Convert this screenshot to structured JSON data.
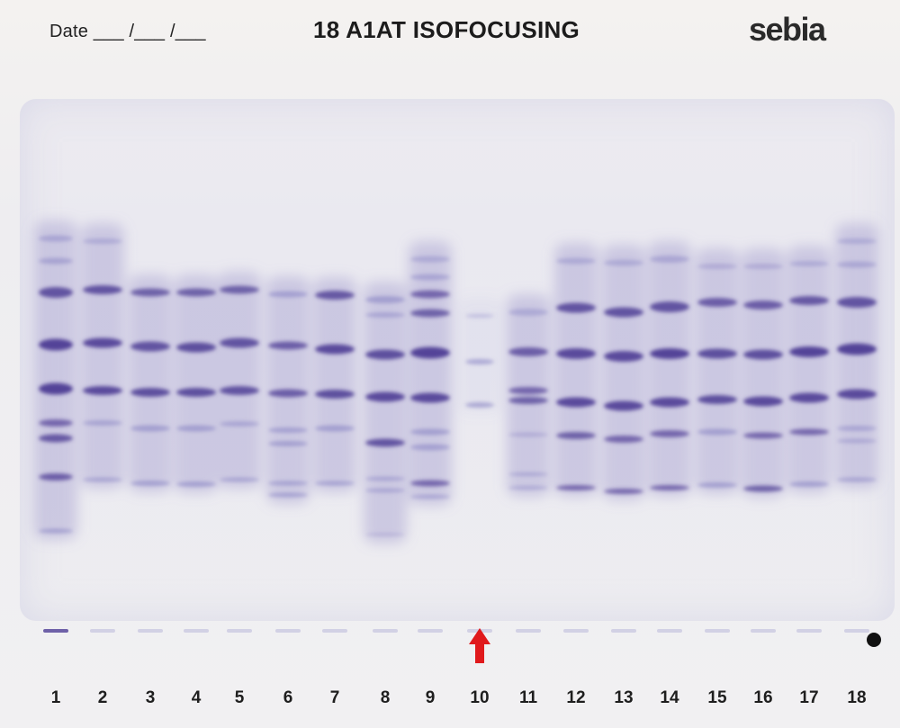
{
  "header": {
    "date_label": "Date ___ /___ /___",
    "title": "18 A1AT ISOFOCUSING",
    "logo": "sebia"
  },
  "lanes": [
    "1",
    "2",
    "3",
    "4",
    "5",
    "6",
    "7",
    "8",
    "9",
    "10",
    "11",
    "12",
    "13",
    "14",
    "15",
    "16",
    "17",
    "18"
  ],
  "marker": {
    "lane": "10",
    "icon": "arrow-up-icon",
    "color": "#e0191c"
  },
  "colors": {
    "band": "#4e3d95",
    "band_light": "#8f8ac7",
    "background": "#f3f1ef"
  }
}
